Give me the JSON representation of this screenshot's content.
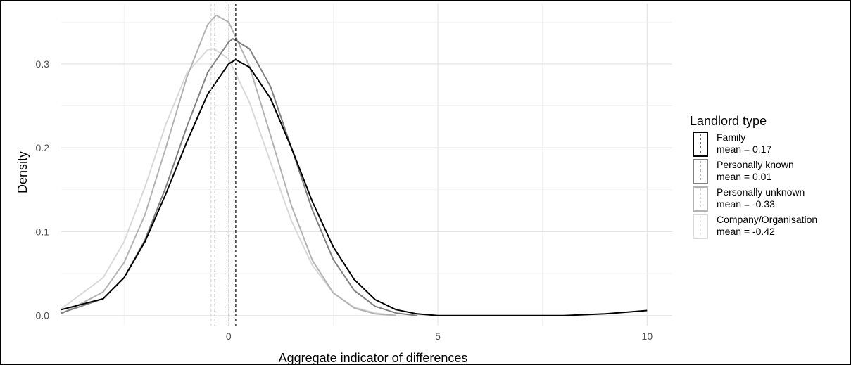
{
  "chart_data": {
    "type": "line",
    "title": "",
    "xlabel": "Aggregate indicator of differences",
    "ylabel": "Density",
    "xlim": [
      -4.0,
      10.6
    ],
    "ylim": [
      -0.012,
      0.372
    ],
    "x_ticks": [
      0,
      5,
      10
    ],
    "x_tick_labels": [
      "0",
      "5",
      "10"
    ],
    "y_ticks": [
      0.0,
      0.1,
      0.2,
      0.3
    ],
    "y_tick_labels": [
      "0.0",
      "0.1",
      "0.2",
      "0.3"
    ],
    "grid": true,
    "legend": {
      "title": "Landlord type",
      "placement": "right"
    },
    "series": [
      {
        "name": "Family",
        "mean_label": "mean = 0.17",
        "mean": 0.17,
        "color": "#000000",
        "x": [
          -4.0,
          -3.0,
          -2.5,
          -2.0,
          -1.5,
          -1.0,
          -0.5,
          0.0,
          0.17,
          0.5,
          1.0,
          1.5,
          2.0,
          2.5,
          3.0,
          3.5,
          4.0,
          4.5,
          5.0,
          8.0,
          9.0,
          10.0
        ],
        "y": [
          0.007,
          0.02,
          0.045,
          0.088,
          0.145,
          0.207,
          0.264,
          0.3,
          0.305,
          0.296,
          0.259,
          0.2,
          0.136,
          0.082,
          0.043,
          0.019,
          0.007,
          0.002,
          0.0,
          0.0,
          0.002,
          0.006
        ]
      },
      {
        "name": "Personally known",
        "mean_label": "mean = 0.01",
        "mean": 0.01,
        "color": "#808080",
        "x": [
          -4.0,
          -3.0,
          -2.5,
          -2.0,
          -1.5,
          -1.0,
          -0.5,
          0.0,
          0.1,
          0.5,
          1.0,
          1.5,
          2.0,
          2.5,
          3.0,
          3.5,
          4.0,
          4.5
        ],
        "y": [
          0.003,
          0.02,
          0.045,
          0.09,
          0.153,
          0.225,
          0.29,
          0.326,
          0.33,
          0.318,
          0.273,
          0.2,
          0.126,
          0.067,
          0.03,
          0.011,
          0.003,
          0.0
        ]
      },
      {
        "name": "Personally unknown",
        "mean_label": "mean = -0.33",
        "mean": -0.33,
        "color": "#b3b3b3",
        "x": [
          -4.0,
          -3.0,
          -2.5,
          -2.0,
          -1.5,
          -1.0,
          -0.5,
          -0.3,
          0.0,
          0.5,
          1.0,
          1.5,
          2.0,
          2.5,
          3.0,
          3.5,
          4.0
        ],
        "y": [
          0.002,
          0.028,
          0.063,
          0.12,
          0.2,
          0.284,
          0.347,
          0.358,
          0.35,
          0.297,
          0.215,
          0.131,
          0.066,
          0.027,
          0.009,
          0.002,
          0.0
        ]
      },
      {
        "name": "Company/Organisation",
        "mean_label": "mean = -0.42",
        "mean": -0.42,
        "color": "#d9d9d9",
        "x": [
          -4.0,
          -3.0,
          -2.5,
          -2.0,
          -1.5,
          -1.0,
          -0.5,
          -0.35,
          0.0,
          0.5,
          1.0,
          1.5,
          2.0,
          2.5,
          3.0,
          3.5,
          4.0
        ],
        "y": [
          0.008,
          0.045,
          0.088,
          0.153,
          0.228,
          0.289,
          0.317,
          0.318,
          0.306,
          0.254,
          0.183,
          0.113,
          0.06,
          0.027,
          0.01,
          0.003,
          0.0
        ]
      }
    ]
  }
}
